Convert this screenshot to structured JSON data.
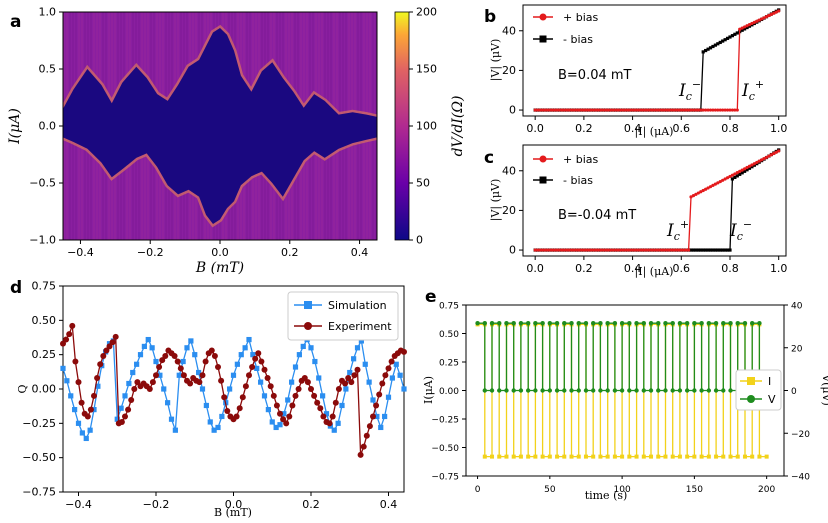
{
  "panel_labels": {
    "a": "a",
    "b": "b",
    "c": "c",
    "d": "d",
    "e": "e"
  },
  "chart_data": [
    {
      "panel": "a",
      "type": "heatmap",
      "xlabel": "B (mT)",
      "ylabel": "I(μA)",
      "xlim": [
        -0.45,
        0.45
      ],
      "ylim": [
        -1.0,
        1.0
      ],
      "xticks": [
        "−0.4",
        "−0.2",
        "0.0",
        "0.2",
        "0.4"
      ],
      "yticks": [
        "1.0",
        "0.5",
        "0.0",
        "−0.5",
        "−1.0"
      ],
      "colorbar": {
        "label": "dV/dI(Ω)",
        "min": 0,
        "max": 200,
        "ticks": [
          "200",
          "150",
          "100",
          "50",
          "0"
        ]
      },
      "critical_current_envelope": {
        "B": [
          -0.45,
          -0.42,
          -0.38,
          -0.34,
          -0.31,
          -0.28,
          -0.24,
          -0.21,
          -0.18,
          -0.15,
          -0.12,
          -0.09,
          -0.06,
          -0.04,
          -0.02,
          0.0,
          0.02,
          0.04,
          0.06,
          0.09,
          0.12,
          0.15,
          0.18,
          0.21,
          0.24,
          0.27,
          0.3,
          0.34,
          0.38,
          0.42,
          0.45
        ],
        "Ic_plus": [
          0.15,
          0.32,
          0.5,
          0.36,
          0.2,
          0.38,
          0.52,
          0.42,
          0.28,
          0.22,
          0.36,
          0.52,
          0.58,
          0.7,
          0.82,
          0.86,
          0.8,
          0.66,
          0.44,
          0.3,
          0.48,
          0.56,
          0.42,
          0.3,
          0.16,
          0.28,
          0.22,
          0.1,
          0.12,
          0.1,
          0.08
        ],
        "Ic_minus": [
          -0.1,
          -0.14,
          -0.2,
          -0.32,
          -0.45,
          -0.38,
          -0.28,
          -0.24,
          -0.36,
          -0.52,
          -0.6,
          -0.56,
          -0.62,
          -0.78,
          -0.86,
          -0.82,
          -0.72,
          -0.66,
          -0.52,
          -0.44,
          -0.4,
          -0.5,
          -0.62,
          -0.46,
          -0.3,
          -0.22,
          -0.28,
          -0.2,
          -0.15,
          -0.12,
          -0.1
        ]
      }
    },
    {
      "panel": "b",
      "type": "line",
      "xlabel": "|I| (μA)",
      "ylabel": "|V| (μV)",
      "xlim": [
        -0.05,
        1.03
      ],
      "ylim": [
        -3,
        53
      ],
      "xticks": [
        "0.0",
        "0.2",
        "0.4",
        "0.6",
        "0.8",
        "1.0"
      ],
      "yticks": [
        "0",
        "20",
        "40"
      ],
      "annotation": "B=0.04 mT",
      "markers": {
        "left": "I_c^−",
        "right": "I_c^+"
      },
      "series": [
        {
          "name": "+ bias",
          "color": "#e41a1c",
          "switch": 0.835,
          "v_after": 40.5,
          "v_end": 50.0
        },
        {
          "name": "- bias",
          "color": "#000000",
          "switch": 0.685,
          "v_after": 29.0,
          "v_end": 50.5
        }
      ]
    },
    {
      "panel": "c",
      "type": "line",
      "xlabel": "|I| (μA)",
      "ylabel": "|V| (μV)",
      "xlim": [
        -0.05,
        1.03
      ],
      "ylim": [
        -3,
        53
      ],
      "xticks": [
        "0.0",
        "0.2",
        "0.4",
        "0.6",
        "0.8",
        "1.0"
      ],
      "yticks": [
        "0",
        "20",
        "40"
      ],
      "annotation": "B=-0.04 mT",
      "markers": {
        "left": "I_c^+",
        "right": "I_c^−"
      },
      "series": [
        {
          "name": "+ bias",
          "color": "#e41a1c",
          "switch": 0.635,
          "v_after": 26.5,
          "v_end": 50.0
        },
        {
          "name": "- bias",
          "color": "#000000",
          "switch": 0.805,
          "v_after": 35.5,
          "v_end": 50.5
        }
      ]
    },
    {
      "panel": "d",
      "type": "line",
      "xlabel": "B (mT)",
      "ylabel": "Q",
      "xlim": [
        -0.44,
        0.44
      ],
      "ylim": [
        -0.75,
        0.75
      ],
      "xticks": [
        "−0.4",
        "−0.2",
        "0.0",
        "0.2",
        "0.4"
      ],
      "yticks": [
        "0.75",
        "0.50",
        "0.25",
        "0.00",
        "−0.25",
        "−0.50",
        "−0.75"
      ],
      "series": [
        {
          "name": "Simulation",
          "color": "#2b8ef0",
          "marker": "square",
          "x": [
            -0.44,
            -0.43,
            -0.42,
            -0.41,
            -0.4,
            -0.39,
            -0.38,
            -0.37,
            -0.36,
            -0.35,
            -0.34,
            -0.33,
            -0.32,
            -0.31,
            -0.3,
            -0.29,
            -0.28,
            -0.27,
            -0.26,
            -0.25,
            -0.24,
            -0.23,
            -0.22,
            -0.21,
            -0.2,
            -0.19,
            -0.18,
            -0.17,
            -0.16,
            -0.15,
            -0.14,
            -0.13,
            -0.12,
            -0.11,
            -0.1,
            -0.09,
            -0.08,
            -0.07,
            -0.06,
            -0.05,
            -0.04,
            -0.03,
            -0.02,
            -0.01,
            0.0,
            0.01,
            0.02,
            0.03,
            0.04,
            0.05,
            0.06,
            0.07,
            0.08,
            0.09,
            0.1,
            0.11,
            0.12,
            0.13,
            0.14,
            0.15,
            0.16,
            0.17,
            0.18,
            0.19,
            0.2,
            0.21,
            0.22,
            0.23,
            0.24,
            0.25,
            0.26,
            0.27,
            0.28,
            0.29,
            0.3,
            0.31,
            0.32,
            0.33,
            0.34,
            0.35,
            0.36,
            0.37,
            0.38,
            0.39,
            0.4,
            0.41,
            0.42,
            0.43,
            0.44
          ],
          "y": [
            0.15,
            0.06,
            -0.05,
            -0.15,
            -0.25,
            -0.32,
            -0.36,
            -0.3,
            -0.15,
            0.02,
            0.17,
            0.27,
            0.33,
            0.35,
            -0.22,
            -0.14,
            -0.05,
            0.04,
            0.12,
            0.18,
            0.25,
            0.31,
            0.36,
            0.3,
            0.2,
            0.1,
            0.0,
            -0.1,
            -0.22,
            -0.3,
            0.1,
            0.2,
            0.3,
            0.35,
            0.25,
            0.12,
            0.0,
            -0.12,
            -0.24,
            -0.3,
            -0.28,
            -0.2,
            -0.1,
            0.0,
            0.1,
            0.18,
            0.25,
            0.3,
            0.36,
            0.25,
            0.15,
            0.05,
            -0.05,
            -0.15,
            -0.24,
            -0.28,
            -0.26,
            -0.18,
            -0.08,
            0.05,
            0.16,
            0.25,
            0.31,
            0.36,
            0.3,
            0.2,
            0.08,
            -0.05,
            -0.18,
            -0.27,
            -0.3,
            -0.25,
            -0.12,
            0.0,
            0.12,
            0.22,
            0.3,
            0.35,
            0.18,
            0.05,
            -0.08,
            -0.2,
            -0.28,
            -0.2,
            -0.06,
            0.08,
            0.18,
            0.1,
            0.0
          ]
        },
        {
          "name": "Experiment",
          "color": "#8b0a0a",
          "marker": "circle",
          "x": [
            -0.44,
            -0.432,
            -0.424,
            -0.416,
            -0.408,
            -0.4,
            -0.392,
            -0.384,
            -0.376,
            -0.368,
            -0.36,
            -0.352,
            -0.344,
            -0.336,
            -0.328,
            -0.32,
            -0.312,
            -0.304,
            -0.296,
            -0.288,
            -0.28,
            -0.272,
            -0.264,
            -0.256,
            -0.248,
            -0.24,
            -0.232,
            -0.224,
            -0.216,
            -0.208,
            -0.2,
            -0.192,
            -0.184,
            -0.176,
            -0.168,
            -0.16,
            -0.152,
            -0.144,
            -0.136,
            -0.128,
            -0.12,
            -0.112,
            -0.104,
            -0.096,
            -0.088,
            -0.08,
            -0.072,
            -0.064,
            -0.056,
            -0.048,
            -0.04,
            -0.032,
            -0.024,
            -0.016,
            -0.008,
            0.0,
            0.008,
            0.016,
            0.024,
            0.032,
            0.04,
            0.048,
            0.056,
            0.064,
            0.072,
            0.08,
            0.088,
            0.096,
            0.104,
            0.112,
            0.12,
            0.128,
            0.136,
            0.144,
            0.152,
            0.16,
            0.168,
            0.176,
            0.184,
            0.192,
            0.2,
            0.208,
            0.216,
            0.224,
            0.232,
            0.24,
            0.248,
            0.256,
            0.264,
            0.272,
            0.28,
            0.288,
            0.296,
            0.304,
            0.312,
            0.32,
            0.328,
            0.336,
            0.344,
            0.352,
            0.36,
            0.368,
            0.376,
            0.384,
            0.392,
            0.4,
            0.408,
            0.416,
            0.424,
            0.432,
            0.44
          ],
          "y": [
            0.33,
            0.36,
            0.4,
            0.46,
            0.2,
            0.05,
            -0.1,
            -0.18,
            -0.2,
            -0.15,
            -0.05,
            0.08,
            0.18,
            0.24,
            0.28,
            0.31,
            0.34,
            0.38,
            -0.25,
            -0.24,
            -0.2,
            -0.15,
            -0.08,
            0.0,
            0.05,
            0.02,
            0.04,
            0.02,
            0.0,
            0.05,
            0.1,
            0.16,
            0.21,
            0.24,
            0.28,
            0.26,
            0.24,
            0.2,
            0.15,
            0.1,
            0.06,
            0.04,
            0.08,
            0.06,
            0.05,
            0.1,
            0.2,
            0.26,
            0.28,
            0.24,
            0.16,
            0.06,
            -0.06,
            -0.16,
            -0.2,
            -0.22,
            -0.2,
            -0.14,
            -0.06,
            0.02,
            0.1,
            0.16,
            0.22,
            0.26,
            0.2,
            0.14,
            0.08,
            0.02,
            -0.05,
            -0.12,
            -0.18,
            -0.22,
            -0.25,
            -0.2,
            -0.12,
            -0.05,
            0.0,
            0.06,
            0.08,
            0.05,
            0.0,
            -0.05,
            -0.1,
            -0.14,
            -0.2,
            -0.24,
            -0.25,
            -0.2,
            -0.1,
            0.0,
            0.06,
            0.04,
            0.08,
            0.05,
            0.1,
            0.14,
            -0.48,
            -0.42,
            -0.34,
            -0.27,
            -0.2,
            -0.12,
            -0.04,
            0.04,
            0.1,
            0.15,
            0.2,
            0.24,
            0.26,
            0.28,
            0.27
          ]
        }
      ],
      "legend": "top-right"
    },
    {
      "panel": "e",
      "type": "line",
      "xlabel": "time (s)",
      "ylabel": "I(μA)",
      "ylabel_right": "V(μV)",
      "xlim": [
        -8,
        212
      ],
      "ylim": [
        -0.75,
        0.75
      ],
      "ylim_right": [
        -40,
        40
      ],
      "xticks": [
        "0",
        "50",
        "100",
        "150",
        "200"
      ],
      "yticks": [
        "0.75",
        "0.50",
        "0.25",
        "0.00",
        "−0.25",
        "−0.50",
        "−0.75"
      ],
      "yticks_right": [
        "40",
        "20",
        "0",
        "−20",
        "−40"
      ],
      "series": [
        {
          "name": "I",
          "color": "#f2d21a",
          "axis": "left",
          "high": 0.58,
          "low": -0.58,
          "t_start": 0,
          "t_end": 200,
          "half_period": 5
        },
        {
          "name": "V",
          "color": "#1e8c1e",
          "axis": "right",
          "high": 31.5,
          "low": 0,
          "t_start": 0,
          "t_end": 200,
          "half_period": 5
        }
      ],
      "legend": "center-right"
    }
  ]
}
